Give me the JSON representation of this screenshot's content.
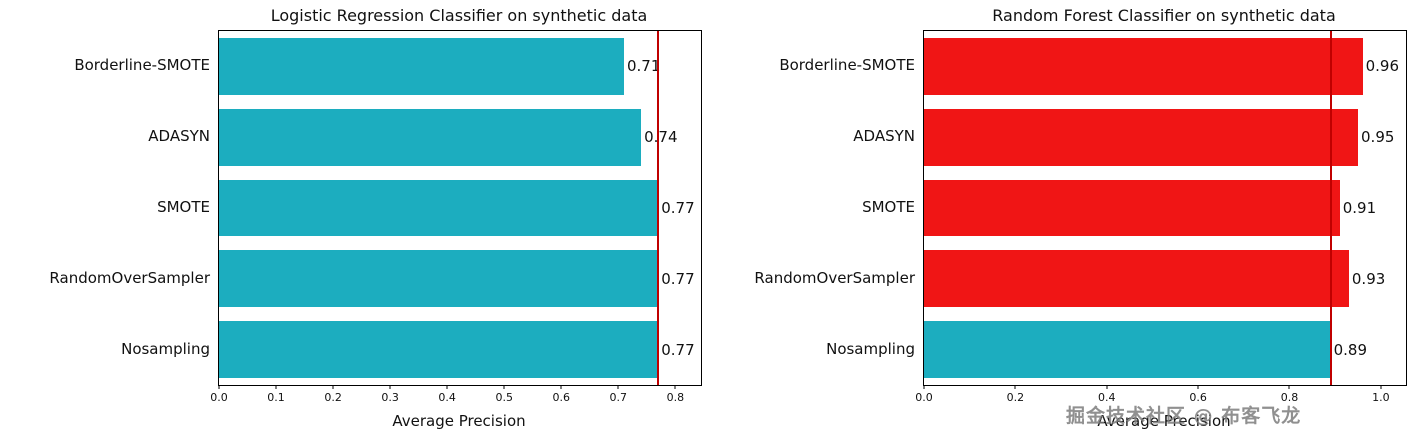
{
  "watermark": "掘金技术社区 @ 布客飞龙",
  "chart_data": [
    {
      "type": "bar",
      "orientation": "horizontal",
      "title": "Logistic Regression Classifier on synthetic data",
      "xlabel": "Average Precision",
      "ylabel": "",
      "categories": [
        "Borderline-SMOTE",
        "ADASYN",
        "SMOTE",
        "RandomOverSampler",
        "Nosampling"
      ],
      "values": [
        0.71,
        0.74,
        0.77,
        0.77,
        0.77
      ],
      "value_labels": [
        "0.71",
        "0.74",
        "0.77",
        "0.77",
        "0.77"
      ],
      "bar_colors": [
        "#1cadbf",
        "#1cadbf",
        "#1cadbf",
        "#1cadbf",
        "#1cadbf"
      ],
      "reference_line": {
        "value": 0.77,
        "color": "#c00000"
      },
      "xlim": [
        0,
        0.845
      ],
      "xticks": [
        0.0,
        0.1,
        0.2,
        0.3,
        0.4,
        0.5,
        0.6,
        0.7,
        0.8
      ],
      "xtick_labels": [
        "0.0",
        "0.1",
        "0.2",
        "0.3",
        "0.4",
        "0.5",
        "0.6",
        "0.7",
        "0.8"
      ],
      "grid": false,
      "legend": null
    },
    {
      "type": "bar",
      "orientation": "horizontal",
      "title": "Random Forest Classifier on synthetic data",
      "xlabel": "Average Precision",
      "ylabel": "",
      "categories": [
        "Borderline-SMOTE",
        "ADASYN",
        "SMOTE",
        "RandomOverSampler",
        "Nosampling"
      ],
      "values": [
        0.96,
        0.95,
        0.91,
        0.93,
        0.89
      ],
      "value_labels": [
        "0.96",
        "0.95",
        "0.91",
        "0.93",
        "0.89"
      ],
      "bar_colors": [
        "#f01515",
        "#f01515",
        "#f01515",
        "#f01515",
        "#1cadbf"
      ],
      "reference_line": {
        "value": 0.89,
        "color": "#c00000"
      },
      "xlim": [
        0,
        1.055
      ],
      "xticks": [
        0.0,
        0.2,
        0.4,
        0.6,
        0.8,
        1.0
      ],
      "xtick_labels": [
        "0.0",
        "0.2",
        "0.4",
        "0.6",
        "0.8",
        "1.0"
      ],
      "grid": false,
      "legend": null
    }
  ]
}
